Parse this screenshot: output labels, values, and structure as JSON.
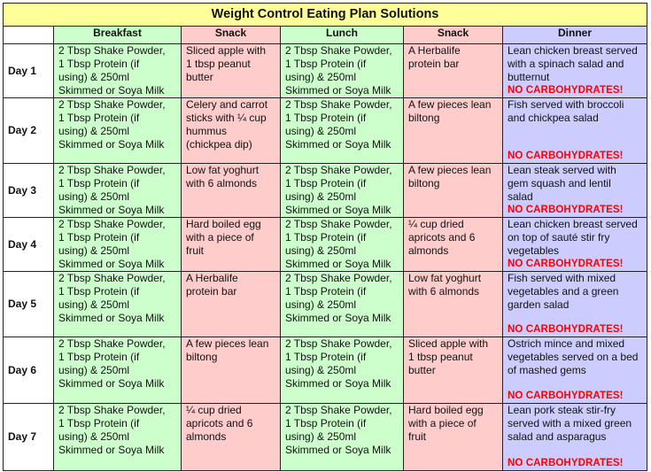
{
  "title": "Weight Control Eating Plan Solutions",
  "headers": [
    "",
    "Breakfast",
    "Snack",
    "Lunch",
    "Snack",
    "Dinner"
  ],
  "no_carb_label": "NO CARBOHYDRATES!",
  "days": [
    {
      "label": "Day 1",
      "breakfast": "2 Tbsp Shake Powder,\n1 Tbsp Protein (if\nusing) & 250ml\nSkimmed or Soya Milk",
      "snack1": "Sliced apple with\n1 tbsp peanut\nbutter",
      "lunch": "2 Tbsp Shake Powder,\n1 Tbsp Protein (if\nusing) & 250ml\nSkimmed or Soya Milk",
      "snack2": "A Herbalife\nprotein bar",
      "dinner": "Lean chicken breast served\nwith a spinach salad and\nbutternut",
      "no_carb": "NO CARBOHYDRATES!"
    },
    {
      "label": "Day 2",
      "breakfast": "2 Tbsp Shake Powder,\n1 Tbsp Protein (if\nusing) & 250ml\nSkimmed or Soya Milk",
      "snack1": "Celery and carrot\nsticks with ¼ cup\nhummus\n(chickpea dip)",
      "lunch": "2 Tbsp Shake Powder,\n1 Tbsp Protein (if\nusing) & 250ml\nSkimmed or Soya Milk",
      "snack2": "A few pieces lean\nbiltong",
      "dinner": "Fish served with broccoli\nand chickpea salad",
      "no_carb": "NO CARBOHYDRATES!"
    },
    {
      "label": "Day 3",
      "breakfast": "2 Tbsp Shake Powder,\n1 Tbsp Protein (if\nusing) & 250ml\nSkimmed or Soya Milk",
      "snack1": "Low fat yoghurt\nwith 6 almonds",
      "lunch": "2 Tbsp Shake Powder,\n1 Tbsp Protein (if\nusing) & 250ml\nSkimmed or Soya Milk",
      "snack2": "A few pieces lean\nbiltong",
      "dinner": "Lean steak served with\ngem squash and lentil\nsalad",
      "no_carb": "NO CARBOHYDRATES!"
    },
    {
      "label": "Day 4",
      "breakfast": "2 Tbsp Shake Powder,\n1 Tbsp Protein (if\nusing) & 250ml\nSkimmed or Soya Milk",
      "snack1": "Hard boiled egg\nwith a piece of\nfruit",
      "lunch": "2 Tbsp Shake Powder,\n1 Tbsp Protein (if\nusing) & 250ml\nSkimmed or Soya Milk",
      "snack2": "¼ cup dried\napricots and 6\nalmonds",
      "dinner": "Lean chicken breast served\non top of sauté stir fry\nvegetables",
      "no_carb": "NO CARBOHYDRATES!"
    },
    {
      "label": "Day 5",
      "breakfast": "2 Tbsp Shake Powder,\n1 Tbsp Protein (if\nusing) & 250ml\nSkimmed or Soya Milk",
      "snack1": "A Herbalife\nprotein bar",
      "lunch": "2 Tbsp Shake Powder,\n1 Tbsp Protein (if\nusing) & 250ml\nSkimmed or Soya Milk",
      "snack2": "Low fat yoghurt\nwith 6 almonds",
      "dinner": "Fish served with mixed\nvegetables and a green\ngarden salad",
      "no_carb": "NO CARBOHYDRATES!"
    },
    {
      "label": "Day 6",
      "breakfast": "2 Tbsp Shake Powder,\n1 Tbsp Protein (if\nusing) & 250ml\nSkimmed or Soya Milk",
      "snack1": "A few pieces lean\nbiltong",
      "lunch": "2 Tbsp Shake Powder,\n1 Tbsp Protein (if\nusing) & 250ml\nSkimmed or Soya Milk",
      "snack2": "Sliced apple with\n1 tbsp peanut\nbutter",
      "dinner": "Ostrich mince and mixed\nvegetables served on a bed\nof mashed gems",
      "no_carb": "NO CARBOHYDRATES!"
    },
    {
      "label": "Day 7",
      "breakfast": "2 Tbsp Shake Powder,\n1 Tbsp Protein (if\nusing) & 250ml\nSkimmed or Soya Milk",
      "snack1": "¼ cup dried\napricots and 6\nalmonds",
      "lunch": "2 Tbsp Shake Powder,\n1 Tbsp Protein (if\nusing) & 250ml\nSkimmed or Soya Milk",
      "snack2": "Hard boiled egg\nwith a piece of\nfruit",
      "dinner": "Lean pork steak stir-fry\nserved with a mixed green\nsalad and asparagus",
      "no_carb": "NO CARBOHYDRATES!"
    }
  ]
}
